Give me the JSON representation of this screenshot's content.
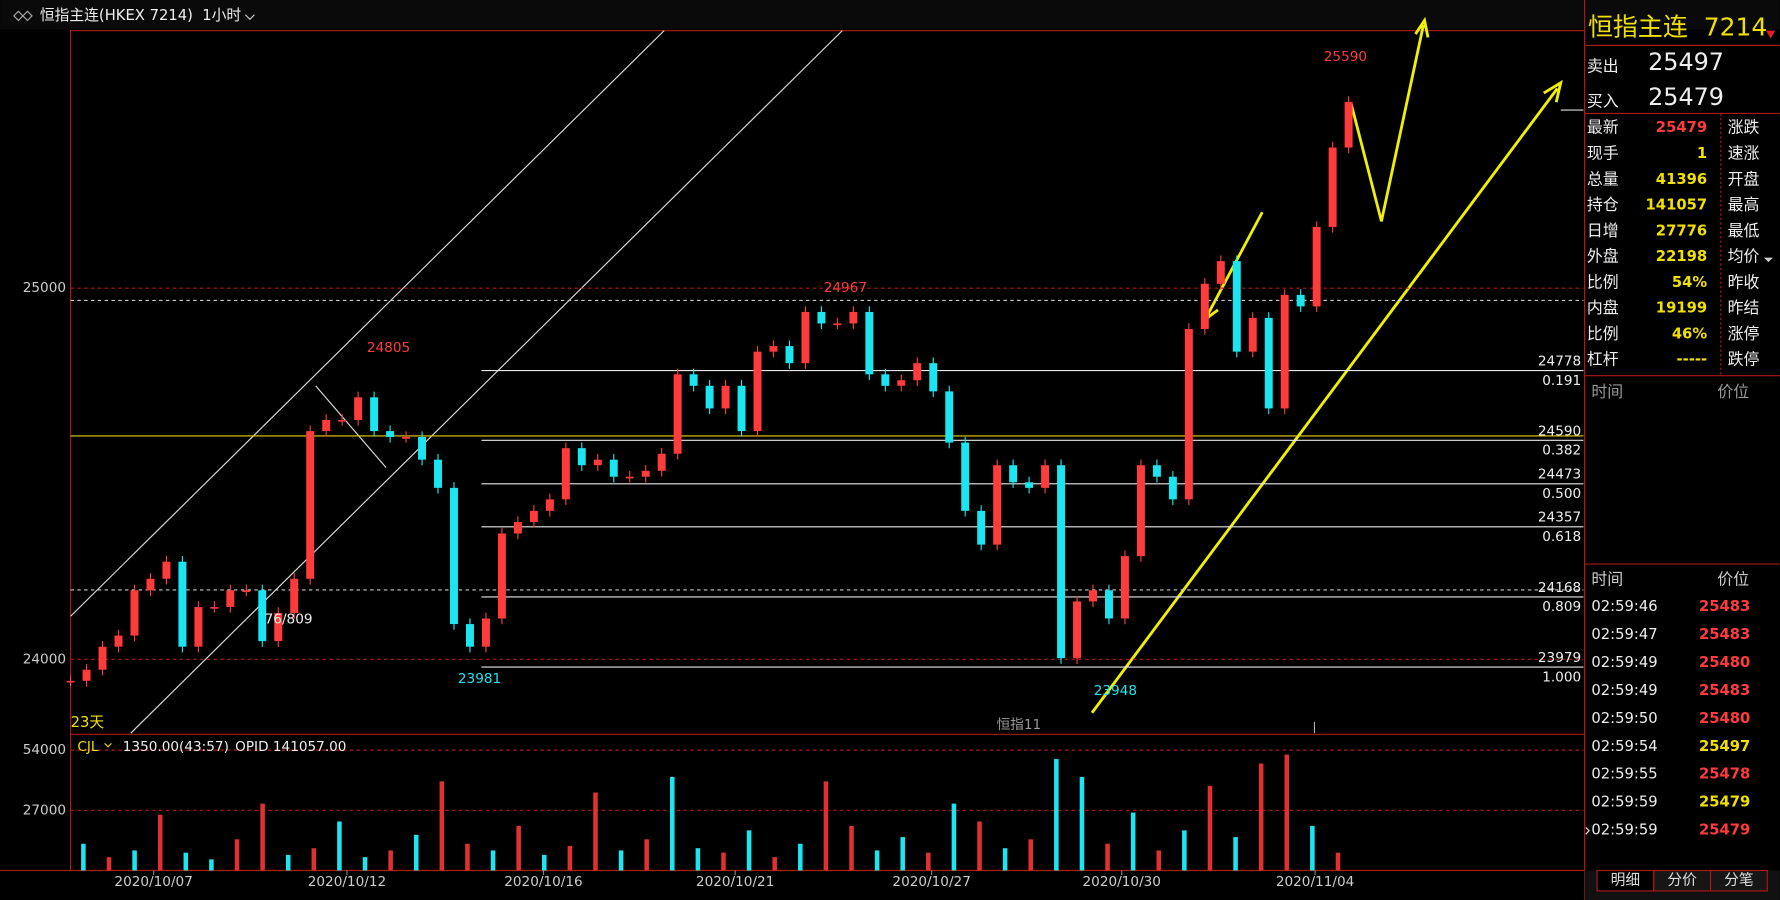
{
  "header": {
    "symbol": "恒指主连(HKEX 7214)",
    "period": "1小时"
  },
  "chart_data": [
    {
      "type": "candlestick",
      "values": [
        23942,
        23972,
        24034,
        24064,
        24186,
        24217,
        24263,
        24034,
        24141,
        24141,
        24186,
        24186,
        24049,
        24125,
        24217,
        24615,
        24645,
        24645,
        24706,
        24615,
        24599,
        24599,
        24538,
        24462,
        24095,
        24034,
        24110,
        24339,
        24370,
        24400,
        24431,
        24569,
        24523,
        24538,
        24492,
        24492,
        24508,
        24554,
        24768,
        24737,
        24676,
        24737,
        24615,
        24829,
        24844,
        24798,
        24936,
        24905,
        24905,
        24936,
        24768,
        24737,
        24752,
        24798,
        24722,
        24584,
        24400,
        24309,
        24523,
        24477,
        24462,
        24523,
        24003,
        24156,
        24186,
        24110,
        24278,
        24523,
        24492,
        24431,
        24890,
        25012,
        25073,
        24829,
        24920,
        24676,
        24982,
        24951,
        25165,
        25379,
        25502
      ],
      "up_color": "#ff3b3b",
      "down_color": "#19e6f0",
      "ylim": [
        23801,
        25694
      ],
      "yticks": [
        24000,
        25000
      ],
      "xlim": [
        0,
        94.7
      ],
      "xticks": [
        {
          "value": 5.2,
          "label": "2020/10/07"
        },
        {
          "value": 17.3,
          "label": "2020/10/12"
        },
        {
          "value": 29.6,
          "label": "2020/10/16"
        },
        {
          "value": 41.6,
          "label": "2020/10/21"
        },
        {
          "value": 53.9,
          "label": "2020/10/27"
        },
        {
          "value": 65.8,
          "label": "2020/10/30"
        },
        {
          "value": 77.9,
          "label": "2020/11/04"
        }
      ],
      "grid": true,
      "annotations": [
        {
          "value": 25590,
          "x": 79.8,
          "kind": "high"
        },
        {
          "value": 24967,
          "x": 48.5,
          "kind": "high"
        },
        {
          "value": 24805,
          "x": 19.9,
          "kind": "high"
        },
        {
          "value": 23981,
          "x": 25.6,
          "kind": "low"
        },
        {
          "value": 23948,
          "x": 65.4,
          "kind": "low"
        }
      ],
      "fib_levels": [
        {
          "price": 24778,
          "ratio": 0.191
        },
        {
          "price": 24590,
          "ratio": 0.382
        },
        {
          "price": 24473,
          "ratio": {
            "value": 0.5,
            "label": "0.500"
          }
        },
        {
          "price": 24357,
          "ratio": 0.618
        },
        {
          "price": 24168,
          "ratio": 0.809
        },
        {
          "price": 23979,
          "ratio": {
            "value": 1,
            "label": "1.000"
          }
        }
      ],
      "reference_lines": [
        {
          "value": 24602,
          "color": "#e6d200",
          "dashed": false
        },
        {
          "value": 24967,
          "color": "#cccccc",
          "dashed": true
        },
        {
          "value": 24187,
          "color": "#cccccc",
          "dashed": true
        }
      ],
      "notes": {
        "days": "23天",
        "contract": "恒指11",
        "ratio": "76/809"
      }
    },
    {
      "type": "bar",
      "title": "CJL",
      "readout": "1350.00(43:57)",
      "opid": "OPID 141057.00",
      "values": [
        12000,
        6000,
        9000,
        25000,
        8000,
        5000,
        14000,
        30000,
        7000,
        10000,
        22000,
        6000,
        9000,
        16000,
        40000,
        12000,
        9000,
        20000,
        7000,
        11000,
        35000,
        9000,
        14000,
        42000,
        10000,
        8000,
        18000,
        6000,
        12000,
        40000,
        20000,
        9000,
        15000,
        8000,
        30000,
        22000,
        10000,
        14000,
        50000,
        42000,
        12000,
        26000,
        9000,
        18000,
        38000,
        15000,
        48000,
        52000,
        20000,
        8000
      ],
      "colors": [
        "#19e6f0",
        "#e03030",
        "#19e6f0",
        "#e03030",
        "#19e6f0",
        "#19e6f0",
        "#e03030",
        "#e03030",
        "#19e6f0",
        "#e03030",
        "#19e6f0",
        "#19e6f0",
        "#e03030",
        "#19e6f0",
        "#e03030",
        "#e03030",
        "#19e6f0",
        "#e03030",
        "#19e6f0",
        "#e03030",
        "#e03030",
        "#19e6f0",
        "#e03030",
        "#19e6f0",
        "#19e6f0",
        "#e03030",
        "#19e6f0",
        "#e03030",
        "#19e6f0",
        "#e03030",
        "#e03030",
        "#19e6f0",
        "#19e6f0",
        "#e03030",
        "#19e6f0",
        "#e03030",
        "#19e6f0",
        "#e03030",
        "#19e6f0",
        "#19e6f0",
        "#e03030",
        "#19e6f0",
        "#e03030",
        "#19e6f0",
        "#e03030",
        "#19e6f0",
        "#e03030",
        "#e03030",
        "#19e6f0",
        "#e03030"
      ],
      "ylim": [
        0,
        61100
      ],
      "yticks": [
        27000,
        54000
      ],
      "grid": true
    }
  ],
  "quote": {
    "name": "恒指主连",
    "code": "7214",
    "sell_label": "卖出",
    "sell": 25497,
    "buy_label": "买入",
    "buy": 25479
  },
  "stats": [
    {
      "label": "最新",
      "value": 25479,
      "right": "涨跌",
      "color": "#ff3b3b"
    },
    {
      "label": "现手",
      "value": 1,
      "right": "速涨",
      "color": "#f0e000"
    },
    {
      "label": "总量",
      "value": 41396,
      "right": "开盘",
      "color": "#f0e000"
    },
    {
      "label": "持仓",
      "value": 141057,
      "right": "最高",
      "color": "#f0e000"
    },
    {
      "label": "日增",
      "value": 27776,
      "right": "最低",
      "color": "#f0e000"
    },
    {
      "label": "外盘",
      "value": 22198,
      "right": "均价",
      "color": "#f0e000"
    },
    {
      "label": "比例",
      "value": "54%",
      "right": "昨收",
      "color": "#f0e000"
    },
    {
      "label": "内盘",
      "value": 19199,
      "right": "昨结",
      "color": "#f0e000"
    },
    {
      "label": "比例",
      "value": "46%",
      "right": "涨停",
      "color": "#f0e000"
    },
    {
      "label": "杠杆",
      "value": "-----",
      "right": "跌停",
      "color": "#f0e000"
    }
  ],
  "detail_header": [
    "时间",
    "价位"
  ],
  "trades_header": [
    "时间",
    "价位"
  ],
  "trades": [
    {
      "time": "02:59:46",
      "price": 25483,
      "color": "#ff3b3b"
    },
    {
      "time": "02:59:47",
      "price": 25483,
      "color": "#ff3b3b"
    },
    {
      "time": "02:59:49",
      "price": 25480,
      "color": "#ff3b3b"
    },
    {
      "time": "02:59:49",
      "price": 25483,
      "color": "#ff3b3b"
    },
    {
      "time": "02:59:50",
      "price": 25480,
      "color": "#ff3b3b"
    },
    {
      "time": "02:59:54",
      "price": 25497,
      "color": "#f0e000"
    },
    {
      "time": "02:59:55",
      "price": 25478,
      "color": "#ff3b3b"
    },
    {
      "time": "02:59:59",
      "price": 25479,
      "color": "#f0e000"
    },
    {
      "time": "02:59:59",
      "price": 25479,
      "color": "#ff3b3b"
    }
  ],
  "tabs": [
    "明细",
    "分价",
    "分笔"
  ]
}
